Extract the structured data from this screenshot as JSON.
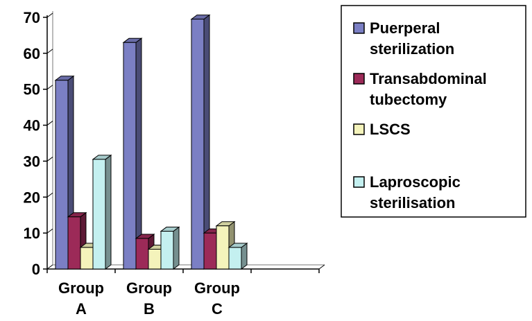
{
  "chart_data": {
    "type": "bar",
    "categories": [
      "Group A",
      "Group B",
      "Group C"
    ],
    "category_lines": [
      [
        "Group",
        "A"
      ],
      [
        "Group",
        "B"
      ],
      [
        "Group",
        "C"
      ]
    ],
    "series": [
      {
        "name": "Puerperal sterilization",
        "name_lines": [
          "Puerperal",
          "sterilization"
        ],
        "color": "#7b7fc4",
        "values": [
          52.5,
          63,
          69.5
        ]
      },
      {
        "name": "Transabdominal tubectomy",
        "name_lines": [
          "Transabdominal",
          "tubectomy"
        ],
        "color": "#9c2a58",
        "values": [
          14.5,
          8.5,
          10
        ]
      },
      {
        "name": "LSCS",
        "name_lines": [
          "LSCS"
        ],
        "color": "#f4f3bb",
        "values": [
          6,
          5.5,
          12
        ]
      },
      {
        "name": "Laproscopic sterilisation",
        "name_lines": [
          "Laproscopic",
          "sterilisation"
        ],
        "color": "#c4f0f0",
        "values": [
          30.5,
          10.5,
          6
        ]
      }
    ],
    "y_ticks": [
      0,
      10,
      20,
      30,
      40,
      50,
      60,
      70
    ],
    "ylim": [
      0,
      70
    ],
    "empty_trailing_categories": 1,
    "legend_position": "right",
    "title": "",
    "xlabel": "",
    "ylabel": ""
  }
}
